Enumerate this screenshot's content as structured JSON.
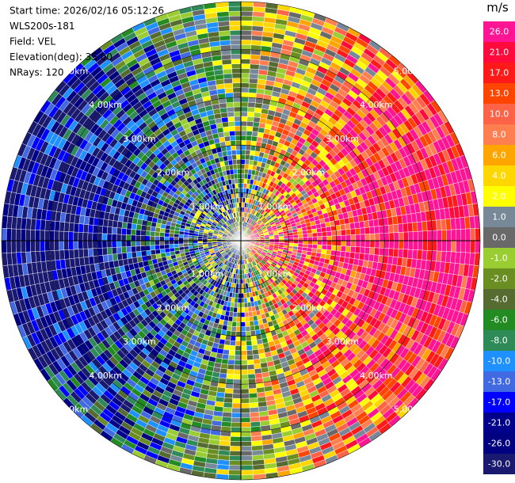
{
  "chart_data": {
    "type": "ppi",
    "info": [
      "Start time: 2026/02/16 05:12:26",
      "WLS200s-181",
      "Field: VEL",
      "Elevation(deg): 35.00",
      "NRays: 120"
    ],
    "range_rings": [
      "1.00km",
      "2.00km",
      "3.00km",
      "4.00km",
      "5.00km"
    ],
    "colorbar": {
      "label": "m/s",
      "ticks": [
        {
          "value": 26,
          "label": "26.0"
        },
        {
          "value": 21,
          "label": "21.0"
        },
        {
          "value": 17,
          "label": "17.0"
        },
        {
          "value": 13,
          "label": "13.0"
        },
        {
          "value": 10,
          "label": "10.0"
        },
        {
          "value": 8,
          "label": "8.0"
        },
        {
          "value": 6,
          "label": "6.0"
        },
        {
          "value": 4,
          "label": "4.0"
        },
        {
          "value": 2,
          "label": "2.0"
        },
        {
          "value": 1,
          "label": "1.0"
        },
        {
          "value": 0,
          "label": "0.0"
        },
        {
          "value": -1,
          "label": "-1.0"
        },
        {
          "value": -2,
          "label": "-2.0"
        },
        {
          "value": -4,
          "label": "-4.0"
        },
        {
          "value": -6,
          "label": "-6.0"
        },
        {
          "value": -8,
          "label": "-8.0"
        },
        {
          "value": -10,
          "label": "-10.0"
        },
        {
          "value": -13,
          "label": "-13.0"
        },
        {
          "value": -17,
          "label": "-17.0"
        },
        {
          "value": -21,
          "label": "-21.0"
        },
        {
          "value": -26,
          "label": "-26.0"
        },
        {
          "value": -30,
          "label": "-30.0"
        }
      ],
      "colors": [
        "#ff1493",
        "#ff0a3c",
        "#ff1a1a",
        "#ff4500",
        "#ff6347",
        "#ff7f50",
        "#ffa500",
        "#ffd700",
        "#ffff00",
        "#778899",
        "#696969",
        "#9acd32",
        "#6b8e23",
        "#556b2f",
        "#228b22",
        "#2e8b57",
        "#1e90ff",
        "#4169e1",
        "#0000ff",
        "#00008b",
        "#000080",
        "#191970"
      ]
    }
  }
}
